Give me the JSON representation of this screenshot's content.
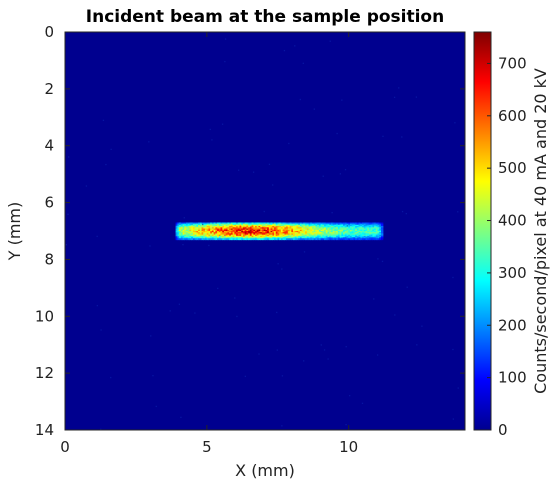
{
  "chart_data": {
    "type": "heatmap",
    "title": "Incident beam at the sample position",
    "xlabel": "X (mm)",
    "ylabel": "Y (mm)",
    "xlim": [
      0,
      14.1
    ],
    "ylim": [
      14,
      0
    ],
    "y_reversed": true,
    "x_ticks": [
      0,
      5,
      10
    ],
    "y_ticks": [
      0,
      2,
      4,
      6,
      8,
      10,
      12,
      14
    ],
    "colorbar": {
      "label": "Counts/second/pixel at 40 mA and 20 kV",
      "range": [
        0,
        760
      ],
      "ticks": [
        0,
        100,
        200,
        300,
        400,
        500,
        600,
        700
      ],
      "colormap": "jet"
    },
    "background_value": 0,
    "beam": {
      "x_range": [
        3.9,
        11.2
      ],
      "y_range": [
        6.7,
        7.3
      ],
      "center_y": 7.0,
      "peak_value": 760,
      "peak_x": 6.5,
      "edge_value": 320
    }
  }
}
